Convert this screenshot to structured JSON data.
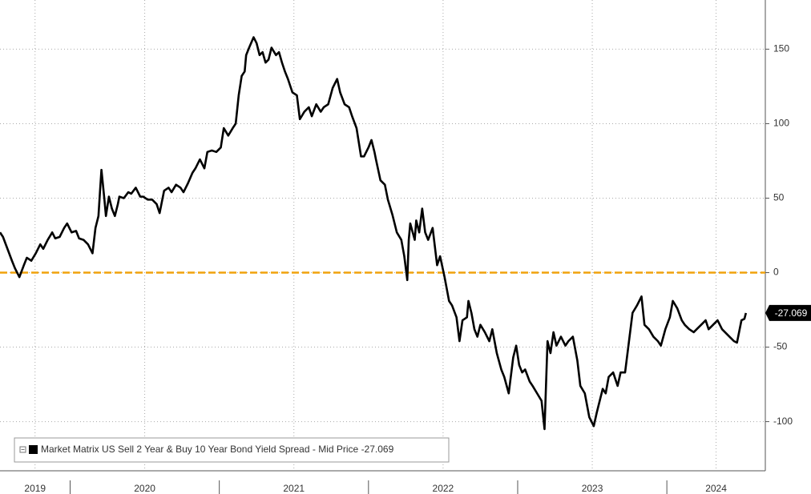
{
  "chart_data": {
    "type": "line",
    "series": [
      {
        "name": "Market Matrix US Sell 2 Year & Buy 10 Year Bond Yield Spread - Mid Price",
        "color": "#000000",
        "x": [
          2019.53,
          2019.55,
          2019.58,
          2019.61,
          2019.63,
          2019.66,
          2019.69,
          2019.71,
          2019.74,
          2019.77,
          2019.8,
          2019.82,
          2019.85,
          2019.88,
          2019.9,
          2019.93,
          2019.96,
          2019.98,
          2020.01,
          2020.04,
          2020.06,
          2020.09,
          2020.12,
          2020.15,
          2020.17,
          2020.19,
          2020.2,
          2020.21,
          2020.23,
          2020.24,
          2020.26,
          2020.28,
          2020.3,
          2020.32,
          2020.33,
          2020.36,
          2020.39,
          2020.41,
          2020.44,
          2020.47,
          2020.49,
          2020.52,
          2020.55,
          2020.58,
          2020.6,
          2020.63,
          2020.66,
          2020.68,
          2020.71,
          2020.74,
          2020.76,
          2020.79,
          2020.82,
          2020.84,
          2020.87,
          2020.9,
          2020.92,
          2020.95,
          2020.98,
          2021.01,
          2021.03,
          2021.06,
          2021.09,
          2021.11,
          2021.13,
          2021.15,
          2021.17,
          2021.18,
          2021.2,
          2021.23,
          2021.25,
          2021.27,
          2021.29,
          2021.31,
          2021.33,
          2021.35,
          2021.38,
          2021.4,
          2021.42,
          2021.44,
          2021.46,
          2021.49,
          2021.52,
          2021.54,
          2021.57,
          2021.6,
          2021.62,
          2021.65,
          2021.68,
          2021.7,
          2021.73,
          2021.76,
          2021.79,
          2021.81,
          2021.84,
          2021.87,
          2021.89,
          2021.92,
          2021.95,
          2021.97,
          2022.0,
          2022.02,
          2022.04,
          2022.05,
          2022.08,
          2022.11,
          2022.13,
          2022.16,
          2022.19,
          2022.22,
          2022.24,
          2022.26,
          2022.27,
          2022.28,
          2022.31,
          2022.32,
          2022.34,
          2022.36,
          2022.38,
          2022.4,
          2022.43,
          2022.46,
          2022.48,
          2022.51,
          2022.54,
          2022.56,
          2022.59,
          2022.61,
          2022.63,
          2022.66,
          2022.67,
          2022.69,
          2022.71,
          2022.73,
          2022.75,
          2022.78,
          2022.81,
          2022.83,
          2022.86,
          2022.89,
          2022.91,
          2022.94,
          2022.95,
          2022.97,
          2022.99,
          2023.01,
          2023.03,
          2023.05,
          2023.08,
          2023.1,
          2023.13,
          2023.16,
          2023.18,
          2023.2,
          2023.22,
          2023.24,
          2023.26,
          2023.29,
          2023.32,
          2023.34,
          2023.37,
          2023.4,
          2023.42,
          2023.45,
          2023.48,
          2023.51,
          2023.53,
          2023.55,
          2023.57,
          2023.59,
          2023.61,
          2023.64,
          2023.67,
          2023.69,
          2023.72,
          2023.75,
          2023.77,
          2023.8,
          2023.83,
          2023.85,
          2023.88,
          2023.91,
          2023.94,
          2023.96,
          2023.99,
          2024.02,
          2024.04,
          2024.07,
          2024.1,
          2024.12,
          2024.15,
          2024.18,
          2024.2,
          2024.23,
          2024.26,
          2024.28,
          2024.31,
          2024.34,
          2024.37,
          2024.39,
          2024.42,
          2024.45,
          2024.47,
          2024.5,
          2024.52,
          2024.53
        ],
        "values": [
          27,
          24,
          16,
          8,
          3,
          -3,
          5,
          10,
          8,
          13,
          19,
          16,
          22,
          27,
          23,
          24,
          30,
          33,
          27,
          28,
          23,
          22,
          19,
          13,
          30,
          38,
          54,
          69,
          49,
          38,
          51,
          43,
          38,
          46,
          51,
          50,
          54,
          53,
          57,
          51,
          51,
          49,
          49,
          46,
          40,
          55,
          57,
          54,
          59,
          57,
          54,
          60,
          67,
          70,
          76,
          70,
          81,
          82,
          81,
          84,
          97,
          92,
          97,
          100,
          119,
          132,
          135,
          146,
          151,
          158,
          154,
          146,
          148,
          141,
          143,
          151,
          146,
          148,
          141,
          135,
          130,
          121,
          119,
          103,
          108,
          111,
          105,
          113,
          108,
          111,
          113,
          124,
          130,
          121,
          113,
          111,
          105,
          97,
          78,
          78,
          84,
          89,
          81,
          76,
          62,
          59,
          49,
          39,
          27,
          22,
          11,
          -5,
          22,
          33,
          22,
          35,
          27,
          43,
          27,
          22,
          30,
          5,
          11,
          -3,
          -19,
          -22,
          -30,
          -46,
          -32,
          -30,
          -19,
          -27,
          -38,
          -43,
          -35,
          -40,
          -46,
          -38,
          -54,
          -65,
          -70,
          -81,
          -73,
          -57,
          -49,
          -62,
          -67,
          -65,
          -73,
          -76,
          -81,
          -86,
          -105,
          -46,
          -54,
          -40,
          -49,
          -43,
          -49,
          -46,
          -43,
          -59,
          -76,
          -81,
          -97,
          -103,
          -94,
          -86,
          -78,
          -81,
          -70,
          -67,
          -76,
          -67,
          -67,
          -43,
          -27,
          -22,
          -16,
          -35,
          -38,
          -43,
          -46,
          -49,
          -38,
          -30,
          -19,
          -24,
          -32,
          -35,
          -38,
          -40,
          -38,
          -35,
          -32,
          -38,
          -35,
          -32,
          -38,
          -40,
          -43,
          -46,
          -47,
          -32,
          -31,
          -27.069
        ]
      }
    ],
    "xlim": [
      2019.53,
      2024.66
    ],
    "xticks": [
      {
        "value": 2019,
        "label": "2019"
      },
      {
        "value": 2020,
        "label": "2020"
      },
      {
        "value": 2021,
        "label": "2021"
      },
      {
        "value": 2022,
        "label": "2022"
      },
      {
        "value": 2023,
        "label": "2023"
      },
      {
        "value": 2024,
        "label": "2024"
      }
    ],
    "ylim": [
      -133,
      183
    ],
    "yticks": [
      -100,
      -50,
      0,
      50,
      100,
      150
    ],
    "grid": true,
    "reference_line": {
      "value": 0,
      "color": "#f0a20c"
    },
    "legend": "lower left"
  }
}
